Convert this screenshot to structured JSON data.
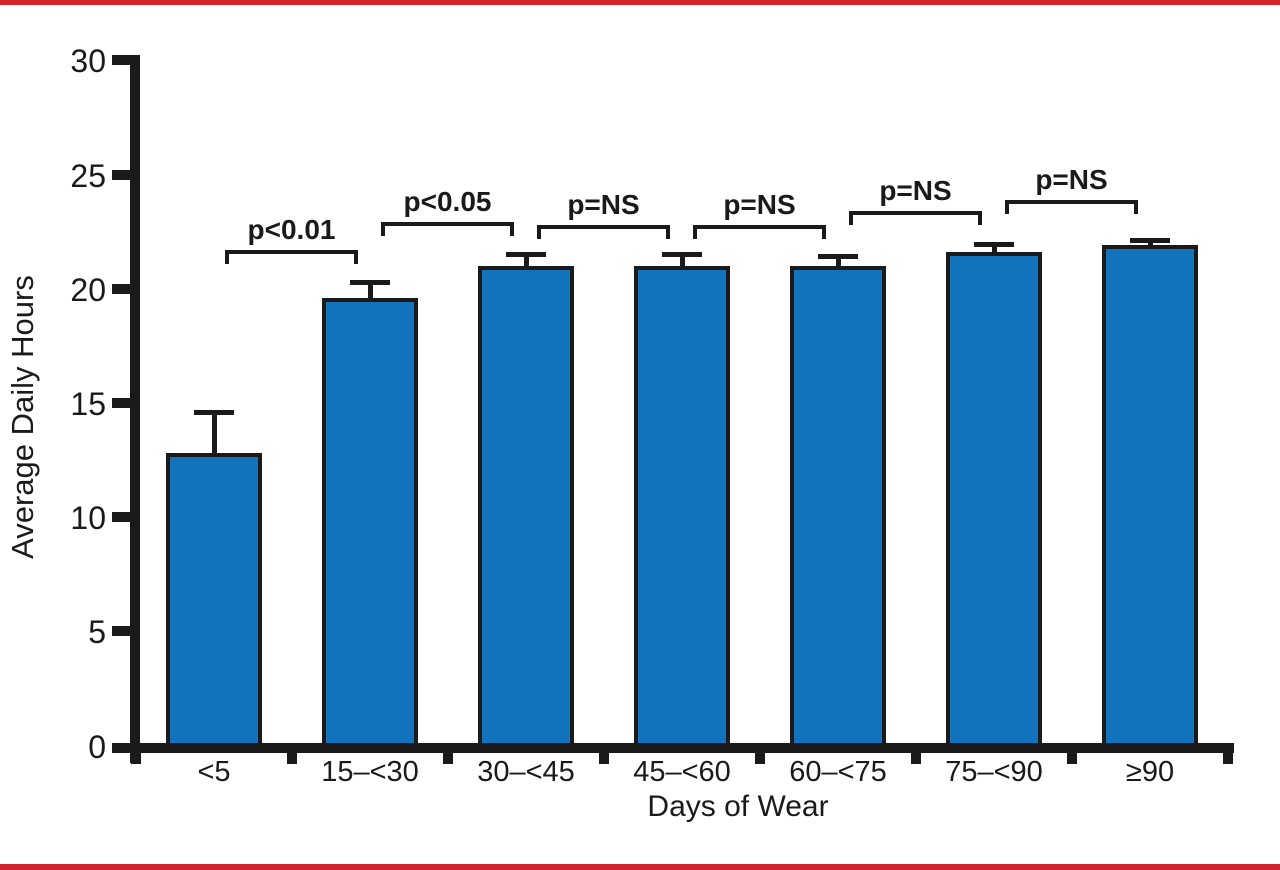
{
  "figure": {
    "top_rule_color": "#d4232c",
    "bottom_rule_color": "#d4232c",
    "background_color": "#ffffff"
  },
  "chart_data": {
    "type": "bar",
    "title": "",
    "xlabel": "Days of Wear",
    "ylabel": "Average Daily Hours",
    "ylim": [
      0,
      30
    ],
    "yticks": [
      0,
      5,
      10,
      15,
      20,
      25,
      30
    ],
    "grid": false,
    "legend_position": "none",
    "categories": [
      "<5",
      "15–<30",
      "30–<45",
      "45–<60",
      "60–<75",
      "75–<90",
      "≥90"
    ],
    "values": [
      12.8,
      19.6,
      21.0,
      21.0,
      21.0,
      21.6,
      21.9
    ],
    "errors_plus": [
      1.8,
      0.7,
      0.5,
      0.5,
      0.45,
      0.35,
      0.25
    ],
    "bar_color": "#1173bc",
    "bar_border_color": "#1a1a1a",
    "axis_color": "#1a1a1a",
    "annotations": [
      {
        "label": "p<0.01",
        "pair": [
          0,
          1
        ],
        "bracket_top_value": 21.7
      },
      {
        "label": "p<0.05",
        "pair": [
          1,
          2
        ],
        "bracket_top_value": 22.9
      },
      {
        "label": "p=NS",
        "pair": [
          2,
          3
        ],
        "bracket_top_value": 22.8
      },
      {
        "label": "p=NS",
        "pair": [
          3,
          4
        ],
        "bracket_top_value": 22.8
      },
      {
        "label": "p=NS",
        "pair": [
          4,
          5
        ],
        "bracket_top_value": 23.4
      },
      {
        "label": "p=NS",
        "pair": [
          5,
          6
        ],
        "bracket_top_value": 23.9
      }
    ]
  }
}
